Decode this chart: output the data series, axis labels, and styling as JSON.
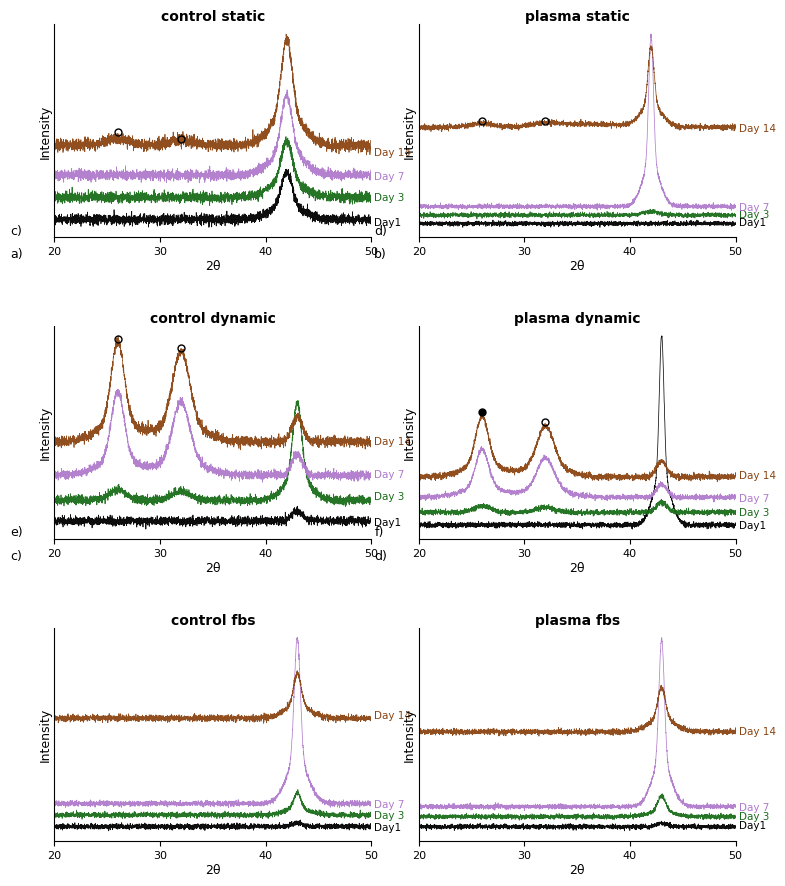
{
  "titles": [
    "control static",
    "plasma static",
    "control dynamic",
    "plasma dynamic",
    "control fbs",
    "plasma fbs"
  ],
  "day_colors": [
    "#000000",
    "#1a6e1a",
    "#b07acc",
    "#8B4513"
  ],
  "day_labels": [
    "Day1",
    "Day 3",
    "Day 7",
    "Day 14"
  ],
  "x_range": [
    20,
    50
  ],
  "xlabel": "2θ",
  "ylabel": "Intensity",
  "background_color": "#ffffff",
  "left_panel_letters": [
    [
      "c)",
      "a)"
    ],
    [
      "e)",
      "c)"
    ],
    [
      "",
      ""
    ]
  ],
  "right_panel_letters": [
    [
      "d)",
      "b)"
    ],
    [
      "f)",
      "d)"
    ],
    [
      "",
      ""
    ]
  ],
  "figsize": [
    7.83,
    8.87
  ]
}
